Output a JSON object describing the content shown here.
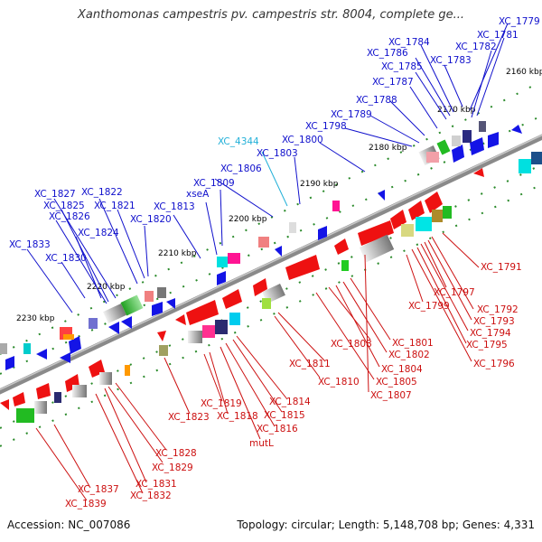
{
  "title": "Xanthomonas campestris pv. campestris str. 8004, complete ge...",
  "footer": {
    "accession": "Accession: NC_007086",
    "summary": "Topology: circular; Length: 5,148,708 bp; Genes: 4,331"
  },
  "colors": {
    "upper_label": "#1010cc",
    "lower_label": "#cc1010",
    "highlight_label": "#22b0d8",
    "backbone": "#888888"
  },
  "kbp_markers": [
    "2160 kbp",
    "2170 kbp",
    "2180 kbp",
    "2190 kbp",
    "2200 kbp",
    "2210 kbp",
    "2220 kbp",
    "2230 kbp"
  ],
  "upper_labels": [
    {
      "text": "XC_1779"
    },
    {
      "text": "XC_1781"
    },
    {
      "text": "XC_1782"
    },
    {
      "text": "XC_1783"
    },
    {
      "text": "XC_1784"
    },
    {
      "text": "XC_1786"
    },
    {
      "text": "XC_1785"
    },
    {
      "text": "XC_1787"
    },
    {
      "text": "XC_1788"
    },
    {
      "text": "XC_1789"
    },
    {
      "text": "XC_1798"
    },
    {
      "text": "XC_1800"
    },
    {
      "text": "XC_4344",
      "highlight": true
    },
    {
      "text": "XC_1803"
    },
    {
      "text": "XC_1806"
    },
    {
      "text": "XC_1809"
    },
    {
      "text": "xseA"
    },
    {
      "text": "XC_1813"
    },
    {
      "text": "XC_1820"
    },
    {
      "text": "XC_1821"
    },
    {
      "text": "XC_1822"
    },
    {
      "text": "XC_1827"
    },
    {
      "text": "XC_1825"
    },
    {
      "text": "XC_1826"
    },
    {
      "text": "XC_1824"
    },
    {
      "text": "XC_1833"
    },
    {
      "text": "XC_1830"
    }
  ],
  "lower_labels": [
    {
      "text": "XC_1791"
    },
    {
      "text": "XC_1797"
    },
    {
      "text": "XC_1799"
    },
    {
      "text": "XC_1792"
    },
    {
      "text": "XC_1793"
    },
    {
      "text": "XC_1794"
    },
    {
      "text": "XC_1795"
    },
    {
      "text": "XC_1796"
    },
    {
      "text": "XC_1808"
    },
    {
      "text": "XC_1801"
    },
    {
      "text": "XC_1802"
    },
    {
      "text": "XC_1804"
    },
    {
      "text": "XC_1805"
    },
    {
      "text": "XC_1807"
    },
    {
      "text": "XC_1811"
    },
    {
      "text": "XC_1810"
    },
    {
      "text": "XC_1814"
    },
    {
      "text": "XC_1815"
    },
    {
      "text": "XC_1816"
    },
    {
      "text": "mutL"
    },
    {
      "text": "XC_1819"
    },
    {
      "text": "XC_1818"
    },
    {
      "text": "XC_1823"
    },
    {
      "text": "XC_1828"
    },
    {
      "text": "XC_1829"
    },
    {
      "text": "XC_1831"
    },
    {
      "text": "XC_1832"
    },
    {
      "text": "XC_1837"
    },
    {
      "text": "XC_1839"
    }
  ]
}
